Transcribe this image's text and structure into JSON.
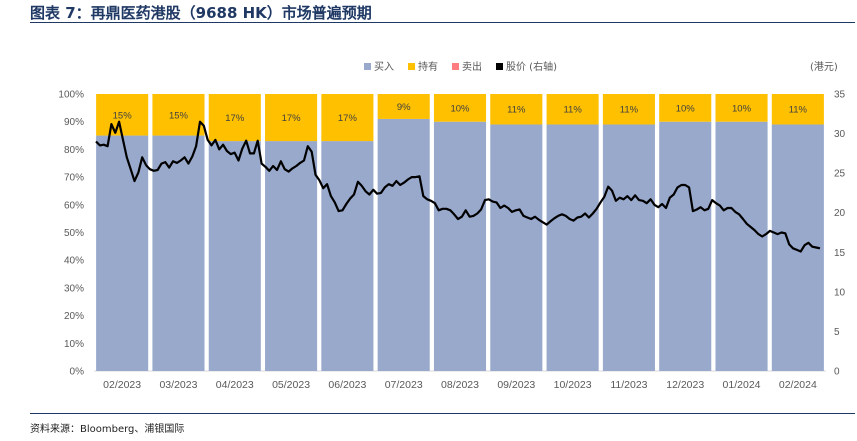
{
  "figure": {
    "title": "图表 7：再鼎医药港股（9688 HK）市场普遍预期",
    "source": "资料来源：Bloomberg、浦银国际"
  },
  "chart_data": {
    "type": "bar",
    "stacked": true,
    "categories": [
      "02/2023",
      "03/2023",
      "04/2023",
      "05/2023",
      "06/2023",
      "07/2023",
      "08/2023",
      "09/2023",
      "10/2023",
      "11/2023",
      "12/2023",
      "01/2024",
      "02/2024"
    ],
    "series": [
      {
        "name": "买入",
        "color": "#98a9cc",
        "values": [
          85,
          85,
          83,
          83,
          83,
          91,
          90,
          89,
          89,
          89,
          90,
          90,
          89
        ]
      },
      {
        "name": "持有",
        "color": "#ffc000",
        "values": [
          15,
          15,
          17,
          17,
          17,
          9,
          10,
          11,
          11,
          11,
          10,
          10,
          11
        ],
        "labels": [
          "15%",
          "15%",
          "17%",
          "17%",
          "17%",
          "9%",
          "10%",
          "11%",
          "11%",
          "11%",
          "10%",
          "10%",
          "11%"
        ]
      },
      {
        "name": "卖出",
        "color": "#ff7c80",
        "values": [
          0,
          0,
          0,
          0,
          0,
          0,
          0,
          0,
          0,
          0,
          0,
          0,
          0
        ]
      }
    ],
    "line": {
      "name": "股价 (右轴)",
      "color": "#000000",
      "y": [
        29,
        28.5,
        28.6,
        28.4,
        31.2,
        30.1,
        31.5,
        29.2,
        27,
        25.5,
        24,
        25.1,
        27,
        26,
        25.5,
        25.3,
        25.4,
        26.2,
        26.4,
        25.7,
        26.5,
        26.3,
        26.6,
        27,
        26.2,
        27.1,
        28.4,
        31.5,
        31,
        29.2,
        28.5,
        29.2,
        28,
        28.6,
        27.8,
        27.4,
        27.6,
        26.6,
        28.1,
        29.1,
        27.5,
        27.5,
        29.1,
        26.2,
        25.8,
        25.3,
        25.9,
        25.4,
        26.5,
        25.5,
        25.2,
        25.6,
        25.9,
        26.3,
        26.6,
        28.4,
        27.7,
        24.8,
        24.1,
        23.1,
        23.6,
        22.1,
        21.3,
        20.2,
        20.3,
        21.1,
        21.8,
        22.3,
        23.9,
        23.4,
        22.7,
        22.3,
        22.9,
        22.4,
        22.5,
        23.2,
        23.6,
        23.4,
        24.0,
        23.5,
        23.8,
        24.2,
        24.5,
        24.5,
        24.6,
        22.1,
        21.7,
        21.5,
        21.2,
        20.3,
        20.5,
        20.5,
        20.3,
        19.8,
        19.2,
        19.5,
        20.3,
        19.5,
        19.6,
        19.9,
        20.4,
        21.6,
        21.7,
        21.4,
        21.3,
        20.6,
        20.9,
        20.6,
        20.1,
        20.3,
        20.4,
        19.6,
        19.4,
        19.2,
        19.5,
        19.1,
        18.8,
        18.5,
        18.9,
        19.3,
        19.6,
        19.8,
        19.6,
        19.2,
        19.0,
        19.4,
        19.5,
        19.9,
        19.4,
        19.9,
        20.5,
        21.3,
        22.0,
        23.3,
        22.8,
        21.5,
        21.9,
        21.7,
        22.1,
        21.6,
        22.2,
        21.6,
        21.5,
        21.2,
        21.7,
        21.0,
        20.7,
        21.1,
        20.6,
        21.9,
        22.3,
        23.2,
        23.5,
        23.5,
        23.2,
        20.2,
        20.4,
        20.7,
        20.3,
        20.5,
        21.6,
        21.2,
        20.9,
        20.3,
        20.6,
        20.6,
        20.1,
        19.8,
        19.2,
        18.6,
        18.2,
        17.8,
        17.3,
        17.0,
        17.3,
        17.7,
        17.5,
        17.3,
        17.5,
        17.4,
        16.0,
        15.5,
        15.3,
        15.1,
        15.9,
        16.2,
        15.7,
        15.6,
        15.5
      ],
      "ylim": [
        0,
        35
      ],
      "unit_label": "(港元)"
    },
    "y_left": {
      "min": 0,
      "max": 100,
      "step": 10,
      "format": "percent"
    },
    "y_right": {
      "min": 0,
      "max": 35,
      "step": 5
    },
    "legend_position": "top-center"
  }
}
